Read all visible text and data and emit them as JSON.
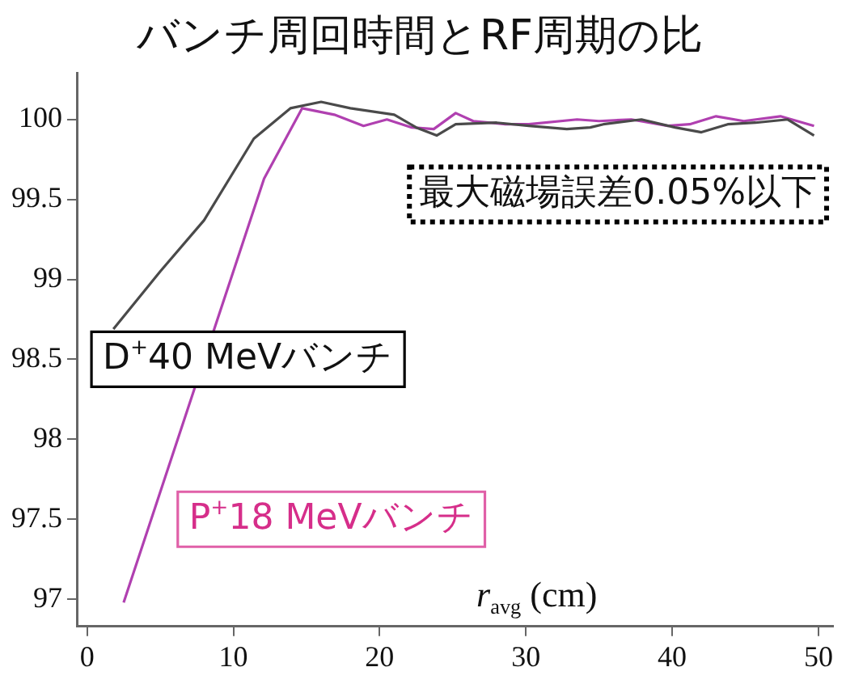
{
  "chart_data": {
    "type": "line",
    "title": "バンチ周回時間とRF周期の比",
    "xlabel": "r$_{avg}$ (cm)",
    "annotations": [
      "最大磁場誤差0.05%以下"
    ],
    "xlim": [
      -0.7,
      51
    ],
    "xticks": [
      0,
      10,
      20,
      30,
      40,
      50
    ],
    "ylim": [
      96.83,
      100.29
    ],
    "yticks": [
      97,
      97.5,
      98,
      98.5,
      99,
      99.5,
      100
    ],
    "grid": false,
    "legend": false,
    "marker": "none",
    "line_style": "solid",
    "series": [
      {
        "name": "D$^{+}$40 MeVバンチ",
        "color": "#4a4a4a",
        "x": [
          1.8,
          5,
          8,
          11.4,
          13.9,
          16,
          18,
          19.5,
          21,
          22.5,
          23.9,
          25.2,
          28,
          30.2,
          32.8,
          34.4,
          35.3,
          37.9,
          40.2,
          42,
          43.8,
          45.7,
          47.9,
          49.7
        ],
        "values": [
          98.69,
          99.05,
          99.37,
          99.88,
          100.07,
          100.11,
          100.07,
          100.05,
          100.03,
          99.95,
          99.9,
          99.97,
          99.98,
          99.96,
          99.94,
          99.95,
          99.97,
          100,
          99.95,
          99.92,
          99.97,
          99.98,
          100,
          99.9
        ]
      },
      {
        "name": "P$^{+}$18 MeVバンチ",
        "color": "#b040b0",
        "x": [
          2.5,
          12.1,
          14.7,
          16.9,
          18.9,
          20.5,
          22.2,
          23.7,
          25.2,
          26.4,
          28.6,
          30.2,
          33.5,
          35,
          37.2,
          39.7,
          41.2,
          43,
          44.9,
          47.4,
          49.7
        ],
        "values": [
          96.98,
          99.63,
          100.07,
          100.03,
          99.96,
          100,
          99.95,
          99.94,
          100.04,
          99.99,
          99.97,
          99.97,
          100,
          99.99,
          100,
          99.96,
          99.97,
          100.02,
          99.99,
          100.02,
          99.96
        ]
      }
    ]
  }
}
